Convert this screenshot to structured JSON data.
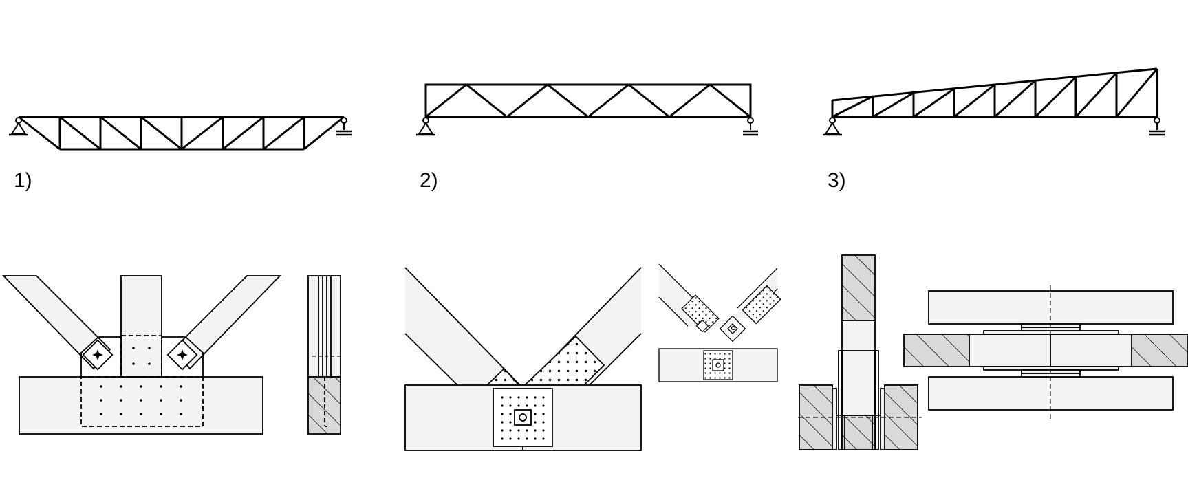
{
  "labels": {
    "truss_1": "1)",
    "truss_2": "2)",
    "truss_3": "3)"
  },
  "colors": {
    "line": "#000000",
    "member_fill": "#f3f3f3",
    "plate_fill": "#ffffff",
    "section_fill": "#d9d9d9"
  },
  "icons": [
    "pin-support-icon",
    "roller-support-icon"
  ]
}
